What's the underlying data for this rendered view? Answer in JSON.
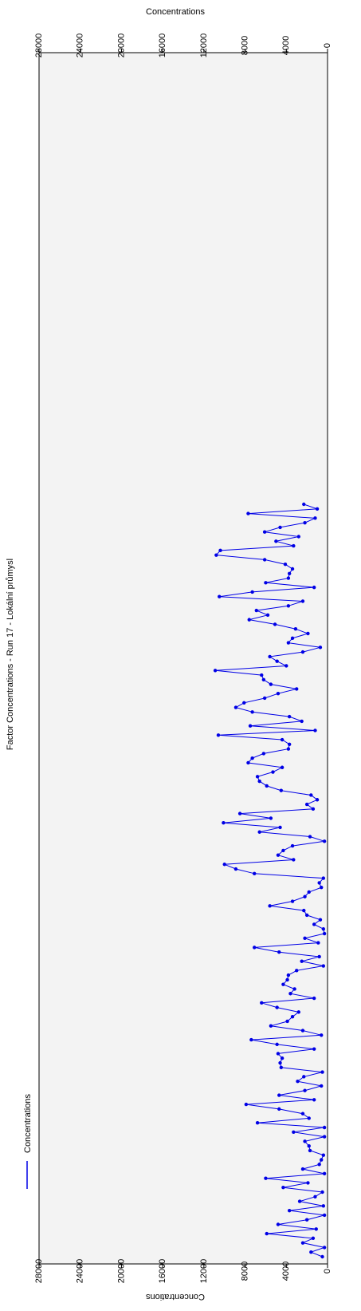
{
  "chart_data": {
    "type": "line",
    "title": "Factor Concentrations - Run 17 - Lokální průmysl",
    "top_axis_label": "Concentrations",
    "bottom_axis_label": "Concentrations",
    "ylim": [
      0,
      28000
    ],
    "y_ticks": [
      0,
      4000,
      8000,
      12000,
      16000,
      20000,
      24000,
      28000
    ],
    "orientation": "rotated-90",
    "grid": false,
    "legend_position": "bottom-left",
    "colors": {
      "series": "#0000e6",
      "plot_bg": "#f3f3f3",
      "separator": "#a0a0a0"
    },
    "series": [
      {
        "name": "Concentrations",
        "marker_groups": [
          {
            "marker": "circle",
            "values": [
              500,
              1600,
              300,
              2400,
              1400,
              5900,
              1100,
              4800,
              2000,
              300,
              3700,
              400,
              2700,
              1200,
              500,
              4300,
              1900,
              6000,
              300,
              2400,
              800,
              600,
              400,
              1700,
              1800,
              2200,
              300,
              3300,
              300,
              6800,
              1800,
              2400,
              4700,
              7900,
              1300,
              4700,
              2200,
              600,
              2900,
              2300,
              500,
              4500,
              4600,
              4400,
              4800,
              1300,
              4900,
              7400,
              600,
              2400,
              5500,
              3900,
              3400,
              2800,
              4900,
              6400,
              1300,
              3600,
              3200,
              4300,
              3900,
              3800,
              3000,
              400,
              2500,
              800,
              4700,
              7100,
              900,
              2200,
              300,
              400,
              1300,
              700,
              2000,
              2300,
              5600,
              3400,
              2200,
              1800,
              600,
              800,
              400,
              7100,
              8900,
              10000,
              3300,
              4800,
              4300,
              3400,
              300,
              1700,
              6600,
              4600,
              10100,
              5500,
              8500,
              1400,
              2000,
              1000,
              1600,
              4500,
              5900,
              6600,
              6800,
              5300,
              4400,
              7700,
              7300,
              6200,
              3800,
              3700,
              4400,
              10600,
              1200,
              7500,
              2500,
              3700,
              7300,
              8900,
              8100,
              6100,
              4800,
              3000,
              5500,
              6200,
              6400,
              10900,
              4000,
              4900,
              5600,
              2400,
              700,
              3800,
              3400,
              1900,
              3100,
              5100,
              7600,
              5800,
              6900,
              3800,
              2400,
              10500,
              7300,
              1300,
              6000,
              3800,
              3700,
              3400,
              4100,
              6100,
              10800,
              10400,
              3300,
              5000,
              2800,
              6100,
              4600,
              2200,
              1200,
              7700,
              1000,
              2300
            ],
            "values_b": [],
            "start_index": 0
          }
        ]
      }
    ]
  }
}
